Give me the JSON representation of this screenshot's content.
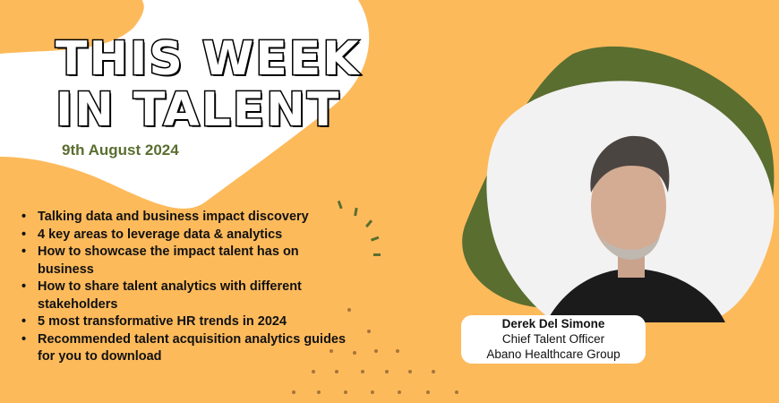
{
  "banner": {
    "title_line1": "THIS WEEK",
    "title_line2": "IN TALENT",
    "date": "9th August 2024",
    "topics": [
      "Talking data and  business impact discovery",
      "4 key areas to leverage data & analytics",
      "How to showcase the impact talent has on business",
      "How to share talent analytics with different stakeholders",
      "5 most transformative HR trends in 2024",
      "Recommended talent acquisition analytics guides for you to download"
    ]
  },
  "speaker": {
    "name": "Derek Del Simone",
    "role": "Chief Talent Officer",
    "company": "Abano Healthcare Group"
  },
  "colors": {
    "background": "#fdba5b",
    "accent_green": "#5a6e30",
    "white": "#ffffff"
  }
}
